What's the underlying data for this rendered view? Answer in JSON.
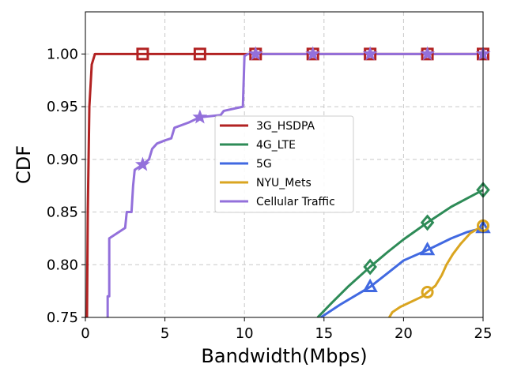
{
  "chart_data": {
    "type": "line",
    "title": "",
    "xlabel": "Bandwidth(Mbps)",
    "ylabel": "CDF",
    "xlim": [
      0,
      25
    ],
    "ylim": [
      0.75,
      1.04
    ],
    "xticks": [
      "0",
      "5",
      "10",
      "15",
      "20",
      "25"
    ],
    "xtick_values": [
      0,
      5,
      10,
      15,
      20,
      25
    ],
    "yticks": [
      "0.75",
      "0.80",
      "0.85",
      "0.90",
      "0.95",
      "1.00"
    ],
    "ytick_values": [
      0.75,
      0.8,
      0.85,
      0.9,
      0.95,
      1.0
    ],
    "grid": true,
    "legend_position": "center",
    "series": [
      {
        "name": "3G_HSDPA",
        "color": "#b22222",
        "marker": "square",
        "points": [
          [
            0.1,
            0.75
          ],
          [
            0.15,
            0.85
          ],
          [
            0.25,
            0.95
          ],
          [
            0.4,
            0.99
          ],
          [
            0.6,
            1.0
          ],
          [
            0.8,
            1.0
          ],
          [
            25,
            1.0
          ]
        ],
        "markers": [
          [
            3.6,
            1.0
          ],
          [
            7.2,
            1.0
          ],
          [
            10.7,
            1.0
          ],
          [
            14.3,
            1.0
          ],
          [
            17.9,
            1.0
          ],
          [
            21.5,
            1.0
          ],
          [
            25,
            1.0
          ]
        ]
      },
      {
        "name": "4G_LTE",
        "color": "#2e8b57",
        "marker": "diamond",
        "points": [
          [
            14.6,
            0.75
          ],
          [
            15.5,
            0.764
          ],
          [
            16.5,
            0.779
          ],
          [
            17.9,
            0.798
          ],
          [
            19,
            0.812
          ],
          [
            20,
            0.824
          ],
          [
            21.5,
            0.84
          ],
          [
            23,
            0.855
          ],
          [
            24,
            0.863
          ],
          [
            25,
            0.871
          ]
        ],
        "markers": [
          [
            17.9,
            0.798
          ],
          [
            21.5,
            0.84
          ],
          [
            25,
            0.871
          ]
        ]
      },
      {
        "name": "5G",
        "color": "#4169e1",
        "marker": "triangle",
        "points": [
          [
            14.8,
            0.75
          ],
          [
            16,
            0.762
          ],
          [
            17.9,
            0.779
          ],
          [
            19,
            0.792
          ],
          [
            20,
            0.804
          ],
          [
            21.5,
            0.814
          ],
          [
            23,
            0.825
          ],
          [
            24,
            0.831
          ],
          [
            25,
            0.835
          ]
        ],
        "markers": [
          [
            17.9,
            0.779
          ],
          [
            21.5,
            0.814
          ],
          [
            25,
            0.835
          ]
        ]
      },
      {
        "name": "NYU_Mets",
        "color": "#daa520",
        "marker": "circle",
        "points": [
          [
            19.1,
            0.75
          ],
          [
            19.3,
            0.755
          ],
          [
            19.8,
            0.76
          ],
          [
            20.5,
            0.765
          ],
          [
            21.2,
            0.77
          ],
          [
            21.5,
            0.774
          ],
          [
            22,
            0.78
          ],
          [
            22.4,
            0.79
          ],
          [
            22.7,
            0.8
          ],
          [
            23.1,
            0.81
          ],
          [
            23.6,
            0.82
          ],
          [
            24.2,
            0.83
          ],
          [
            25,
            0.837
          ]
        ],
        "markers": [
          [
            21.5,
            0.774
          ],
          [
            25,
            0.837
          ]
        ]
      },
      {
        "name": "Cellular Traffic",
        "color": "#9370db",
        "marker": "star",
        "points": [
          [
            1.4,
            0.75
          ],
          [
            1.4,
            0.77
          ],
          [
            1.5,
            0.77
          ],
          [
            1.5,
            0.825
          ],
          [
            2.0,
            0.83
          ],
          [
            2.5,
            0.835
          ],
          [
            2.6,
            0.85
          ],
          [
            2.9,
            0.85
          ],
          [
            3.0,
            0.875
          ],
          [
            3.1,
            0.89
          ],
          [
            3.6,
            0.895
          ],
          [
            4.0,
            0.9
          ],
          [
            4.2,
            0.91
          ],
          [
            4.5,
            0.915
          ],
          [
            5.0,
            0.918
          ],
          [
            5.4,
            0.92
          ],
          [
            5.6,
            0.93
          ],
          [
            6.5,
            0.935
          ],
          [
            7.2,
            0.94
          ],
          [
            8.5,
            0.942
          ],
          [
            8.7,
            0.946
          ],
          [
            9.9,
            0.95
          ],
          [
            10.0,
            0.998
          ],
          [
            10.2,
            1.0
          ],
          [
            25,
            1.0
          ]
        ],
        "markers": [
          [
            3.6,
            0.895
          ],
          [
            7.2,
            0.94
          ],
          [
            10.7,
            1.0
          ],
          [
            14.3,
            1.0
          ],
          [
            17.9,
            1.0
          ],
          [
            21.5,
            1.0
          ],
          [
            25,
            1.0
          ]
        ]
      }
    ]
  }
}
